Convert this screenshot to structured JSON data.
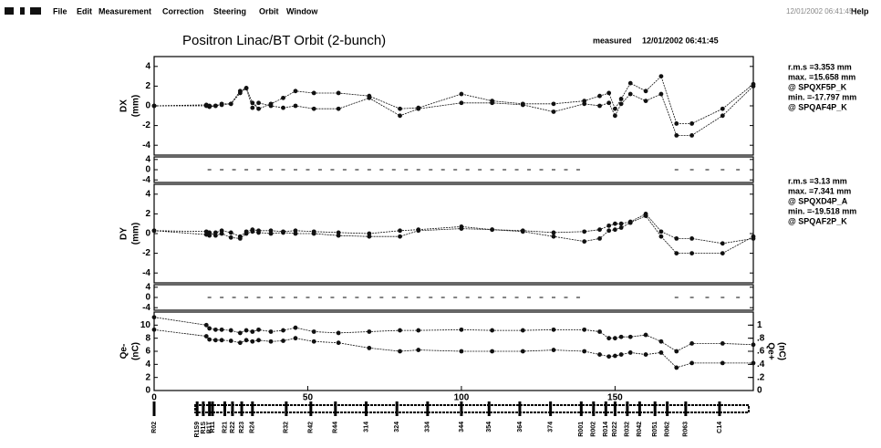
{
  "menu": [
    "File",
    "Edit",
    "Measurement",
    "Correction",
    "Steering",
    "Orbit",
    "Window",
    "Help"
  ],
  "timestamp": "12/01/2002 06:41:45",
  "title": "Positron Linac/BT  Orbit (2-bunch)",
  "status": "measured",
  "measured_time": "12/01/2002 06:41:45",
  "chart_data": [
    {
      "type": "line",
      "ylabel": "DX",
      "yunit": "(mm)",
      "xlim": [
        0,
        195
      ],
      "ylim": [
        -5,
        5
      ],
      "yticks": [
        -4,
        -2,
        0,
        2,
        4
      ],
      "x": [
        0,
        17,
        18,
        20,
        22,
        25,
        28,
        30,
        32,
        34,
        38,
        42,
        46,
        52,
        60,
        70,
        80,
        86,
        100,
        110,
        120,
        130,
        140,
        145,
        148,
        150,
        152,
        155,
        160,
        165,
        170,
        175,
        185,
        195
      ],
      "series": [
        {
          "color": "#111111",
          "values": [
            0,
            0.1,
            0,
            0,
            0.2,
            0.2,
            1.5,
            1.8,
            0.3,
            -0.3,
            0.2,
            0.8,
            1.5,
            1.3,
            1.3,
            1.0,
            -0.3,
            -0.2,
            1.2,
            0.5,
            0.2,
            0.2,
            0.5,
            1.0,
            1.3,
            -0.3,
            0.7,
            2.3,
            1.5,
            3.0,
            -1.8,
            -1.8,
            -0.3,
            2.2
          ]
        },
        {
          "color": "#111111",
          "values": [
            0,
            0,
            -0.1,
            0,
            0.1,
            0.2,
            1.3,
            1.8,
            -0.2,
            0.3,
            0,
            -0.2,
            0,
            -0.3,
            -0.3,
            0.8,
            -1.0,
            -0.3,
            0.3,
            0.3,
            0.1,
            -0.6,
            0.2,
            0,
            0.3,
            -1.0,
            0.2,
            1.2,
            0.5,
            1.2,
            -3.0,
            -3.0,
            -1.0,
            2.0
          ]
        }
      ],
      "stats": [
        "r.m.s =3.353 mm",
        "max. =15.658 mm",
        "@ SPQXF5P_K",
        "min. =-17.797 mm",
        "@ SPQAF4P_K"
      ]
    },
    {
      "type": "strip",
      "xlim": [
        0,
        195
      ],
      "ylim": [
        -5,
        5
      ],
      "yticks": [
        -4,
        0,
        4
      ],
      "x": [
        18,
        22,
        26,
        30,
        34,
        38,
        42,
        46,
        50,
        54,
        58,
        62,
        66,
        70,
        74,
        78,
        82,
        86,
        90,
        94,
        98,
        102,
        106,
        110,
        114,
        118,
        122,
        126,
        130,
        134,
        138,
        170,
        175,
        180,
        185,
        190
      ],
      "series": [
        {
          "color": "#333333",
          "values": [
            0,
            0,
            0,
            0,
            0,
            0,
            0,
            0,
            0,
            0,
            0,
            0,
            0,
            0,
            0,
            0,
            0,
            0,
            0,
            0,
            0,
            0,
            0,
            0,
            0,
            0,
            0,
            0,
            0,
            0,
            0,
            0,
            0,
            0,
            0,
            0
          ]
        }
      ]
    },
    {
      "type": "line",
      "ylabel": "DY",
      "yunit": "(mm)",
      "xlim": [
        0,
        195
      ],
      "ylim": [
        -5,
        5
      ],
      "yticks": [
        -4,
        -2,
        0,
        2,
        4
      ],
      "x": [
        0,
        17,
        18,
        20,
        22,
        25,
        28,
        30,
        32,
        34,
        38,
        42,
        46,
        52,
        60,
        70,
        80,
        86,
        100,
        110,
        120,
        130,
        140,
        145,
        148,
        150,
        152,
        155,
        160,
        165,
        170,
        175,
        185,
        195
      ],
      "series": [
        {
          "color": "#111111",
          "values": [
            0.3,
            0.2,
            -0.2,
            0.1,
            0.3,
            0.1,
            -0.3,
            0.2,
            0.4,
            0.3,
            0.3,
            0.2,
            0.3,
            0.2,
            0.1,
            0,
            0.3,
            0.4,
            0.7,
            0.4,
            0.3,
            0.1,
            0.2,
            0.4,
            0.8,
            1.0,
            1.0,
            1.2,
            2.0,
            0.2,
            -0.5,
            -0.5,
            -1.0,
            -0.5
          ]
        },
        {
          "color": "#111111",
          "values": [
            0.3,
            -0.1,
            0.1,
            -0.2,
            0,
            -0.4,
            -0.5,
            0,
            0.2,
            0.1,
            0,
            0.1,
            0,
            0,
            -0.2,
            -0.3,
            -0.3,
            0.3,
            0.5,
            0.4,
            0.2,
            -0.3,
            -0.8,
            -0.5,
            0.3,
            0.4,
            0.6,
            1.1,
            1.8,
            -0.3,
            -2.0,
            -2.0,
            -2.0,
            -0.3
          ]
        }
      ],
      "stats": [
        "r.m.s =3.13 mm",
        "max. =7.341 mm",
        "@ SPQXD4P_A",
        "min. =-19.518 mm",
        "@ SPQAF2P_K"
      ]
    },
    {
      "type": "strip",
      "xlim": [
        0,
        195
      ],
      "ylim": [
        -5,
        5
      ],
      "yticks": [
        -4,
        0,
        4
      ],
      "x": [
        18,
        22,
        26,
        30,
        34,
        38,
        42,
        46,
        50,
        54,
        58,
        62,
        66,
        70,
        74,
        78,
        82,
        86,
        90,
        94,
        98,
        102,
        106,
        110,
        114,
        118,
        122,
        126,
        130,
        134,
        138,
        170,
        175,
        180,
        185,
        190
      ],
      "series": [
        {
          "color": "#333333",
          "values": [
            0,
            0,
            0,
            0,
            0,
            0,
            0,
            0,
            0,
            0,
            0,
            0,
            0,
            0,
            0,
            0,
            0,
            0,
            0,
            0,
            0,
            0,
            0,
            0,
            0,
            0,
            0,
            0,
            0,
            0,
            0,
            0,
            0,
            0,
            0,
            0
          ]
        }
      ]
    },
    {
      "type": "line",
      "ylabel": "Qe-",
      "yunit": "(nC)",
      "y2label": "Qe+",
      "y2unit": "(nC)",
      "xlim": [
        0,
        195
      ],
      "xticks": [
        0,
        50,
        100,
        150
      ],
      "ylim": [
        0,
        12
      ],
      "yticks": [
        0,
        2,
        4,
        6,
        8,
        10
      ],
      "y2lim": [
        0,
        1.2
      ],
      "y2ticks": [
        0,
        {
          "value": 0.2,
          "label": ".2"
        },
        {
          "value": 0.4,
          "label": ".4"
        },
        {
          "value": 0.6,
          "label": ".6"
        },
        {
          "value": 0.8,
          "label": ".8"
        },
        1
      ],
      "x": [
        0,
        17,
        18,
        20,
        22,
        25,
        28,
        30,
        32,
        34,
        38,
        42,
        46,
        52,
        60,
        70,
        80,
        86,
        100,
        110,
        120,
        130,
        140,
        145,
        148,
        150,
        152,
        155,
        160,
        165,
        170,
        175,
        185,
        195
      ],
      "series": [
        {
          "color": "#111111",
          "values": [
            11.2,
            10,
            9.5,
            9.3,
            9.3,
            9.2,
            8.8,
            9.2,
            9.0,
            9.3,
            9.0,
            9.2,
            9.6,
            9.0,
            8.8,
            9.0,
            9.2,
            9.2,
            9.3,
            9.2,
            9.2,
            9.3,
            9.3,
            9.0,
            8.0,
            8.0,
            8.2,
            8.2,
            8.5,
            7.5,
            6.0,
            7.2,
            7.2,
            7.0
          ]
        },
        {
          "color": "#111111",
          "axis": "y2",
          "values": [
            0.93,
            0.83,
            0.78,
            0.77,
            0.77,
            0.76,
            0.73,
            0.77,
            0.75,
            0.77,
            0.75,
            0.76,
            0.8,
            0.75,
            0.73,
            0.65,
            0.6,
            0.62,
            0.6,
            0.6,
            0.6,
            0.62,
            0.6,
            0.55,
            0.52,
            0.53,
            0.55,
            0.58,
            0.55,
            0.58,
            0.35,
            0.42,
            0.42,
            0.42
          ]
        }
      ]
    }
  ],
  "beamline": {
    "labels": [
      "R02",
      "R1S9",
      "R1S",
      "R1T",
      "R11",
      "R21",
      "R22",
      "R23",
      "R24",
      "R32",
      "R42",
      "R44",
      "314",
      "324",
      "334",
      "344",
      "354",
      "364",
      "374",
      "R001",
      "R002",
      "R014",
      "R022",
      "R032",
      "R042",
      "R051",
      "R062",
      "R063",
      "C14"
    ],
    "s": [
      0,
      14,
      16,
      18,
      19,
      23,
      25.5,
      28.5,
      32,
      43,
      51,
      59,
      69,
      79,
      89,
      100,
      109,
      119,
      129,
      139,
      143,
      147,
      150,
      154,
      158,
      163,
      167,
      173,
      184
    ]
  }
}
